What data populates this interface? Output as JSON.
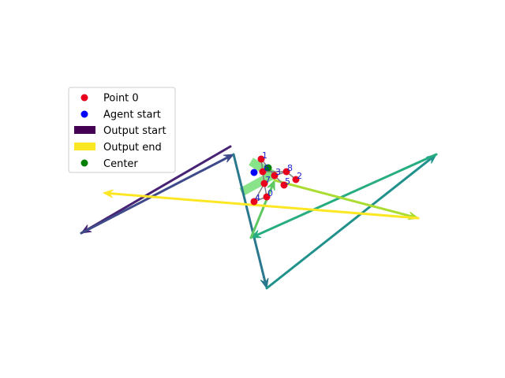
{
  "chart_data": {
    "type": "scatter",
    "title": "",
    "xlabel": "",
    "ylabel": "",
    "axes_visible": false,
    "xlim": [
      0,
      640
    ],
    "ylim": [
      480,
      0
    ],
    "legend": {
      "placement": "upper-left",
      "entries": [
        {
          "label": "Point 0",
          "kind": "dot",
          "color": "#e8001c"
        },
        {
          "label": "Agent start",
          "kind": "dot",
          "color": "#0000ff"
        },
        {
          "label": "Output start",
          "kind": "bar",
          "color": "#440154"
        },
        {
          "label": "Output end",
          "kind": "bar",
          "color": "#fde725"
        },
        {
          "label": "Center",
          "kind": "dot",
          "color": "#008000"
        }
      ]
    },
    "points": [
      {
        "label": "0",
        "x": 338,
        "y": 250
      },
      {
        "label": "1",
        "x": 331,
        "y": 202
      },
      {
        "label": "2",
        "x": 375,
        "y": 228
      },
      {
        "label": "3",
        "x": 348,
        "y": 223
      },
      {
        "label": "4",
        "x": 322,
        "y": 256
      },
      {
        "label": "5",
        "x": 360,
        "y": 235
      },
      {
        "label": "6",
        "x": 333,
        "y": 218
      },
      {
        "label": "7",
        "x": 335,
        "y": 233
      },
      {
        "label": "8",
        "x": 363,
        "y": 218
      }
    ],
    "point_color": "#e8001c",
    "point_links": [
      [
        1,
        6
      ],
      [
        6,
        7
      ],
      [
        7,
        4
      ],
      [
        4,
        0
      ],
      [
        1,
        3
      ],
      [
        3,
        5
      ],
      [
        6,
        8
      ],
      [
        8,
        2
      ],
      [
        3,
        8
      ],
      [
        7,
        0
      ]
    ],
    "agent_start": {
      "x": 322,
      "y": 219,
      "color": "#0000ff"
    },
    "center": {
      "x": 340,
      "y": 213,
      "color": "#008000"
    },
    "guide_segments": [
      {
        "from": [
          318,
          205
        ],
        "to": [
          346,
          222
        ],
        "color": "#7ce07c"
      },
      {
        "from": [
          306,
          244
        ],
        "to": [
          346,
          222
        ],
        "color": "#7ce07c"
      }
    ],
    "output_path": [
      {
        "x": 292,
        "y": 186
      },
      {
        "x": 103,
        "y": 296
      },
      {
        "x": 296,
        "y": 196
      },
      {
        "x": 338,
        "y": 366
      },
      {
        "x": 553,
        "y": 196
      },
      {
        "x": 318,
        "y": 302
      },
      {
        "x": 348,
        "y": 229
      },
      {
        "x": 530,
        "y": 277
      },
      {
        "x": 131,
        "y": 245
      }
    ],
    "output_colors": [
      "#482374",
      "#3e4a89",
      "#2a788e",
      "#21918c",
      "#27ad81",
      "#5ec962",
      "#aadc32",
      "#fde725"
    ]
  }
}
